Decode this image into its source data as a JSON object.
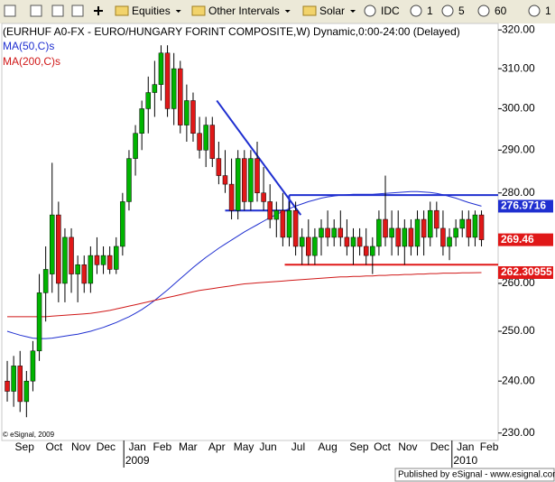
{
  "toolbar": {
    "items": [
      "Equities",
      "Other Intervals",
      "Solar",
      "IDC",
      "1",
      "5",
      "60",
      "1"
    ]
  },
  "chart_data": {
    "type": "candlestick",
    "title": "(EURHUF A0-FX - EURO/HUNGARY FORINT COMPOSITE,W) Dynamic,0:00-24:00 (Delayed)",
    "copyright": "© eSignal, 2009",
    "log_scale": true,
    "ylim": [
      228.6,
      321.7
    ],
    "yticks": [
      {
        "value": 230,
        "label": "230.00"
      },
      {
        "value": 240,
        "label": "240.00"
      },
      {
        "value": 250,
        "label": "250.00"
      },
      {
        "value": 260,
        "label": "260.00"
      },
      {
        "value": 280,
        "label": "280.00"
      },
      {
        "value": 290,
        "label": "290.00"
      },
      {
        "value": 300,
        "label": "300.00"
      },
      {
        "value": 310,
        "label": "310.00"
      },
      {
        "value": 320,
        "label": "320.00"
      }
    ],
    "xlim": [
      -0.85,
      76.6
    ],
    "xticks": [
      {
        "value": 2.7,
        "label": "Sep"
      },
      {
        "value": 7.3,
        "label": "Oct"
      },
      {
        "value": 11.5,
        "label": "Nov"
      },
      {
        "value": 15.4,
        "label": "Dec"
      },
      {
        "value": 20.3,
        "label": "Jan"
      },
      {
        "value": 24.2,
        "label": "Feb"
      },
      {
        "value": 28.2,
        "label": "Mar"
      },
      {
        "value": 32.7,
        "label": "Apr"
      },
      {
        "value": 36.9,
        "label": "May"
      },
      {
        "value": 40.7,
        "label": "Jun"
      },
      {
        "value": 45.4,
        "label": "Jul"
      },
      {
        "value": 50,
        "label": "Aug"
      },
      {
        "value": 54.9,
        "label": "Sep"
      },
      {
        "value": 58.5,
        "label": "Oct"
      },
      {
        "value": 62.5,
        "label": "Nov"
      },
      {
        "value": 67.5,
        "label": "Dec"
      },
      {
        "value": 71.5,
        "label": "Jan"
      },
      {
        "value": 75.2,
        "label": "Feb"
      }
    ],
    "year_ticks": [
      {
        "value": 20.3,
        "label": "2009"
      },
      {
        "value": 71.5,
        "label": "2010"
      }
    ],
    "up_color": "#00b400",
    "down_color": "#e01818",
    "open": [
      240,
      238,
      243,
      236,
      240,
      246,
      258,
      262,
      275,
      260,
      270,
      262,
      264,
      260,
      266,
      264,
      266,
      263,
      268,
      278,
      288,
      294,
      300,
      304,
      306,
      314,
      300,
      310,
      296,
      302,
      294,
      290,
      296,
      288,
      284,
      282,
      276,
      288,
      278,
      288,
      280,
      278,
      274,
      276,
      270,
      276,
      268,
      270,
      266,
      270,
      272,
      270,
      272,
      270,
      268,
      270,
      268,
      266,
      268,
      274,
      270,
      272,
      268,
      272,
      268,
      274,
      270,
      276,
      272,
      268,
      270,
      272,
      274,
      270,
      275
    ],
    "high": [
      244,
      245,
      246,
      242,
      248,
      262,
      268,
      287,
      278,
      272,
      272,
      266,
      266,
      268,
      270,
      268,
      268,
      270,
      280,
      290,
      296,
      302,
      308,
      312,
      316,
      316,
      314,
      312,
      306,
      304,
      298,
      298,
      298,
      292,
      290,
      288,
      290,
      290,
      290,
      292,
      286,
      282,
      278,
      280,
      278,
      278,
      272,
      274,
      272,
      274,
      276,
      274,
      276,
      274,
      272,
      272,
      272,
      270,
      276,
      284,
      276,
      276,
      274,
      274,
      276,
      276,
      278,
      278,
      276,
      272,
      274,
      276,
      276,
      276,
      276
    ],
    "low": [
      236,
      235,
      234,
      233,
      238,
      244,
      252,
      258,
      256,
      256,
      258,
      256,
      258,
      258,
      262,
      262,
      262,
      262,
      266,
      276,
      284,
      290,
      294,
      298,
      302,
      298,
      296,
      294,
      292,
      292,
      288,
      286,
      286,
      282,
      280,
      274,
      274,
      276,
      276,
      278,
      276,
      272,
      270,
      268,
      268,
      266,
      264,
      264,
      264,
      266,
      268,
      268,
      268,
      266,
      264,
      266,
      264,
      262,
      266,
      268,
      266,
      266,
      264,
      266,
      266,
      266,
      268,
      270,
      266,
      265,
      268,
      270,
      268,
      268,
      268
    ],
    "close": [
      238,
      243,
      236,
      240,
      246,
      258,
      263,
      275,
      260,
      270,
      262,
      264,
      260,
      266,
      264,
      266,
      263,
      268,
      278,
      288,
      294,
      300,
      304,
      306,
      314,
      300,
      310,
      296,
      302,
      294,
      290,
      296,
      288,
      284,
      282,
      276,
      288,
      278,
      288,
      280,
      278,
      274,
      276,
      270,
      276,
      268,
      270,
      266,
      270,
      272,
      270,
      272,
      270,
      268,
      270,
      268,
      266,
      268,
      274,
      270,
      272,
      268,
      272,
      268,
      274,
      270,
      276,
      272,
      268,
      270,
      272,
      274,
      270,
      275,
      269.46
    ],
    "series": [
      {
        "name": "MA(50,C)s",
        "color": "#1f2fd0",
        "values": [
          250,
          249.6,
          249.2,
          248.9,
          248.6,
          248.5,
          248.5,
          248.6,
          248.8,
          249,
          249.2,
          249.4,
          249.7,
          250,
          250.4,
          250.8,
          251.3,
          251.8,
          252.4,
          253,
          253.7,
          254.5,
          255.4,
          256.4,
          257.5,
          258.6,
          259.8,
          261,
          262.2,
          263.4,
          264.5,
          265.6,
          266.6,
          267.6,
          268.5,
          269.4,
          270.3,
          271.2,
          272,
          272.8,
          273.6,
          274.4,
          275.1,
          275.8,
          276.4,
          277,
          277.5,
          278,
          278.4,
          278.8,
          279.1,
          279.3,
          279.5,
          279.6,
          279.7,
          279.7,
          279.7,
          279.7,
          279.8,
          279.9,
          280,
          280.1,
          280.2,
          280.3,
          280.3,
          280.2,
          280.1,
          279.9,
          279.6,
          279.2,
          278.8,
          278.3,
          277.8,
          277.4,
          276.9716
        ]
      },
      {
        "name": "MA(200,C)s",
        "color": "#d01818",
        "values": [
          253,
          253,
          253,
          253,
          253,
          253,
          253,
          253.1,
          253.2,
          253.3,
          253.4,
          253.5,
          253.6,
          253.7,
          253.9,
          254.1,
          254.3,
          254.6,
          254.9,
          255.2,
          255.5,
          255.8,
          256.1,
          256.4,
          256.7,
          257,
          257.3,
          257.6,
          257.9,
          258.2,
          258.5,
          258.7,
          258.9,
          259.1,
          259.3,
          259.5,
          259.7,
          259.9,
          260,
          260.1,
          260.2,
          260.3,
          260.4,
          260.5,
          260.6,
          260.7,
          260.8,
          260.9,
          261,
          261.1,
          261.2,
          261.3,
          261.4,
          261.4,
          261.5,
          261.5,
          261.6,
          261.6,
          261.7,
          261.7,
          261.8,
          261.8,
          261.9,
          261.9,
          262,
          262,
          262.1,
          262.1,
          262.2,
          262.2,
          262.2,
          262.25,
          262.27,
          262.29,
          262.30955
        ]
      }
    ],
    "trendlines": [
      {
        "color": "#1f2fd0",
        "x": [
          32.7,
          45.8
        ],
        "y": [
          302,
          275
        ]
      },
      {
        "color": "#1f2fd0",
        "x": [
          34,
          44
        ],
        "y": [
          276,
          276
        ]
      },
      {
        "color": "#1f2fd0",
        "x": [
          44,
          44
        ],
        "y": [
          276,
          279.5
        ]
      },
      {
        "color": "#1f2fd0",
        "x": [
          44,
          76.6
        ],
        "y": [
          279.5,
          279.5
        ]
      },
      {
        "color": "#e01818",
        "x": [
          43.3,
          76.6
        ],
        "y": [
          264,
          264
        ]
      }
    ],
    "price_tags": [
      {
        "value": 276.9716,
        "color": "#1f2fd0"
      },
      {
        "value": 269.46,
        "color": "#e01818"
      },
      {
        "value": 262.30955,
        "color": "#e01818"
      }
    ]
  },
  "footer": "Published by eSignal - www.esignal.com"
}
